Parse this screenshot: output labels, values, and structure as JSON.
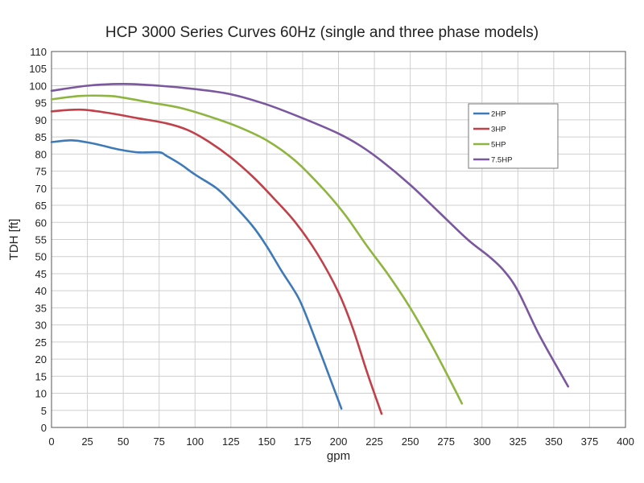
{
  "chart_data": {
    "type": "line",
    "title": "HCP 3000 Series Curves 60Hz (single and three phase models)",
    "xlabel": "gpm",
    "ylabel": "TDH [ft]",
    "xlim": [
      0,
      400
    ],
    "ylim": [
      0,
      110
    ],
    "x_ticks": [
      0,
      25,
      50,
      75,
      100,
      125,
      150,
      175,
      200,
      225,
      250,
      275,
      300,
      325,
      350,
      375,
      400
    ],
    "y_ticks": [
      0,
      5,
      10,
      15,
      20,
      25,
      30,
      35,
      40,
      45,
      50,
      55,
      60,
      65,
      70,
      75,
      80,
      85,
      90,
      95,
      100,
      105,
      110
    ],
    "grid": true,
    "legend_position": "top-right",
    "series": [
      {
        "name": "2HP",
        "color": "#3f7ab8",
        "x": [
          0,
          15,
          30,
          45,
          60,
          75,
          80,
          90,
          100,
          115,
          125,
          140,
          150,
          160,
          172,
          180,
          190,
          202
        ],
        "y": [
          83.5,
          84,
          83,
          81.5,
          80.5,
          80.5,
          79.5,
          77,
          74,
          70,
          66,
          59,
          53,
          46,
          38,
          30,
          19,
          5.5
        ]
      },
      {
        "name": "3HP",
        "color": "#c0414a",
        "x": [
          0,
          20,
          40,
          60,
          80,
          95,
          110,
          125,
          140,
          155,
          170,
          185,
          200,
          210,
          220,
          230
        ],
        "y": [
          92.5,
          93,
          92,
          90.5,
          89,
          87,
          83.5,
          79,
          73.5,
          67,
          60,
          51,
          39.5,
          29,
          16,
          4
        ]
      },
      {
        "name": "5HP",
        "color": "#8fb541",
        "x": [
          0,
          20,
          40,
          50,
          70,
          90,
          110,
          130,
          150,
          170,
          190,
          205,
          220,
          235,
          250,
          265,
          280,
          286
        ],
        "y": [
          96,
          97,
          97,
          96.5,
          95,
          93.5,
          91,
          88,
          84,
          78,
          69.5,
          62,
          53,
          44.5,
          35,
          24,
          12,
          7
        ]
      },
      {
        "name": "7.5HP",
        "color": "#7a579f",
        "x": [
          0,
          25,
          50,
          75,
          100,
          125,
          150,
          175,
          200,
          215,
          230,
          250,
          270,
          290,
          305,
          315,
          325,
          340,
          360
        ],
        "y": [
          98.5,
          100,
          100.5,
          100,
          99,
          97.5,
          94.5,
          90.5,
          86,
          82.5,
          78,
          71,
          63,
          55,
          50,
          46,
          40,
          27,
          12
        ]
      }
    ]
  }
}
